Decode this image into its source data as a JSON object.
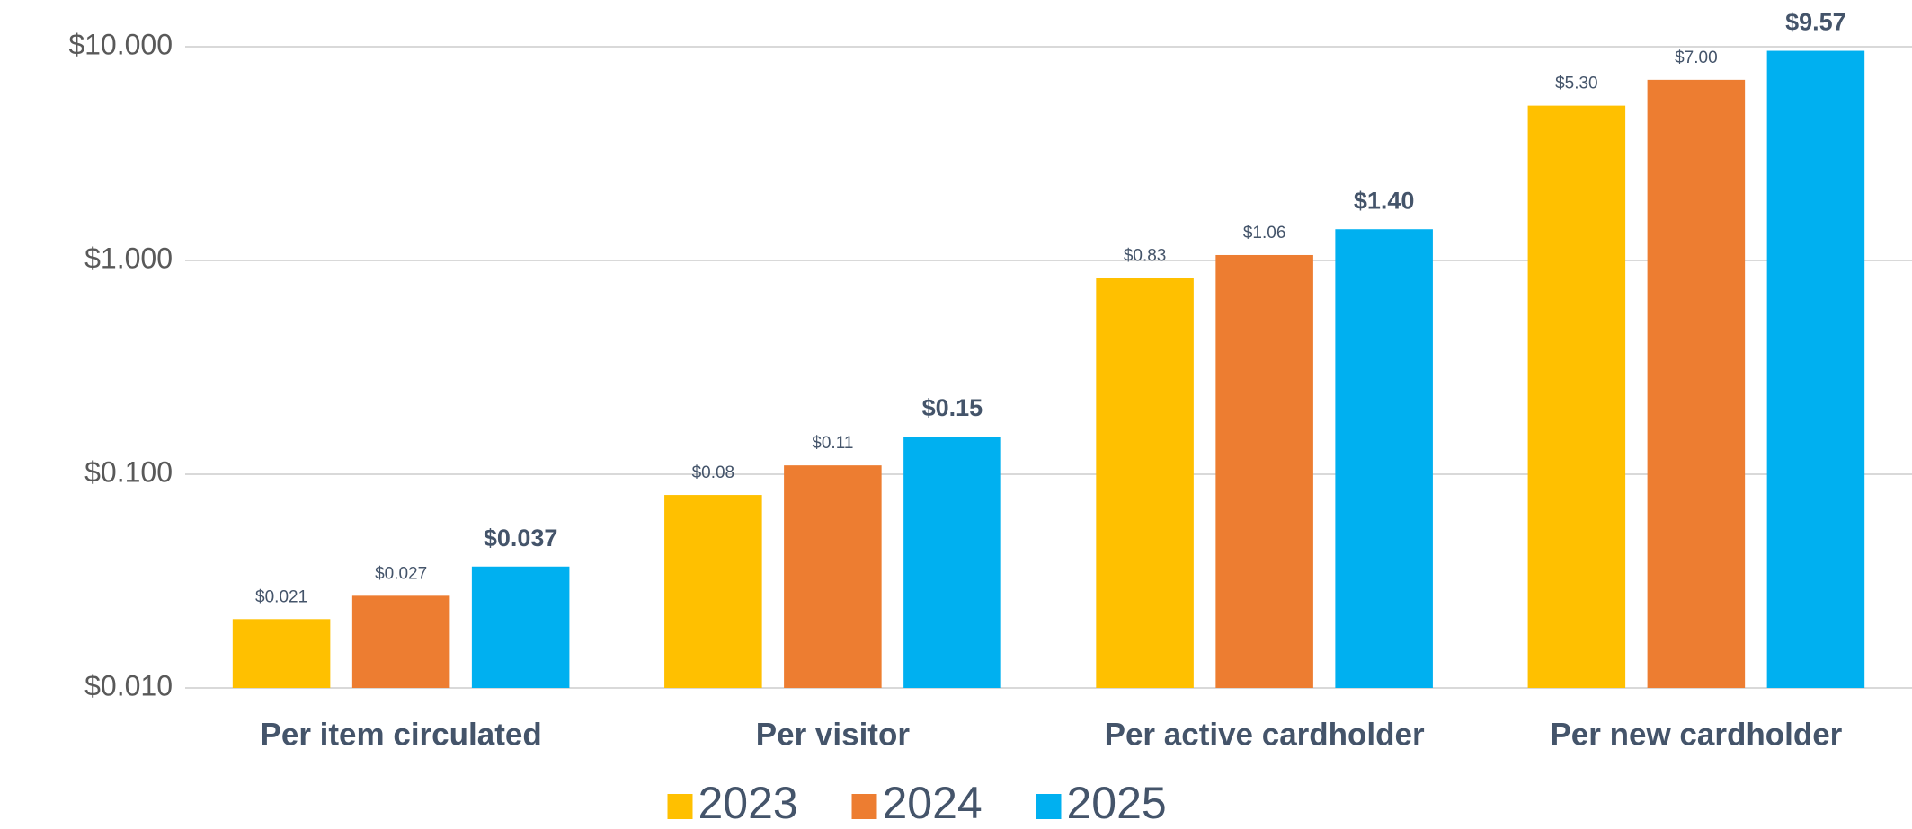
{
  "chart_data": {
    "type": "bar",
    "categories": [
      "Per item circulated",
      "Per visitor",
      "Per active cardholder",
      "Per new cardholder"
    ],
    "series": [
      {
        "name": "2023",
        "color": "#FFC000",
        "values": [
          0.021,
          0.08,
          0.83,
          5.3
        ],
        "value_labels": [
          "$0.021",
          "$0.08",
          "$0.83",
          "$5.30"
        ]
      },
      {
        "name": "2024",
        "color": "#ED7D31",
        "values": [
          0.027,
          0.11,
          1.06,
          7.0
        ],
        "value_labels": [
          "$0.027",
          "$0.11",
          "$1.06",
          "$7.00"
        ]
      },
      {
        "name": "2025",
        "color": "#00B0F0",
        "values": [
          0.037,
          0.15,
          1.4,
          9.57
        ],
        "value_labels": [
          "$0.037",
          "$0.15",
          "$1.40",
          "$9.57"
        ]
      }
    ],
    "ylim": [
      0.01,
      10
    ],
    "yticks": [
      {
        "value": 0.01,
        "label": "$0.010"
      },
      {
        "value": 0.1,
        "label": "$0.100"
      },
      {
        "value": 1,
        "label": "$1.000"
      },
      {
        "value": 10,
        "label": "$10.000"
      }
    ],
    "log_scale": true,
    "grid": true,
    "legend_position": "bottom"
  }
}
